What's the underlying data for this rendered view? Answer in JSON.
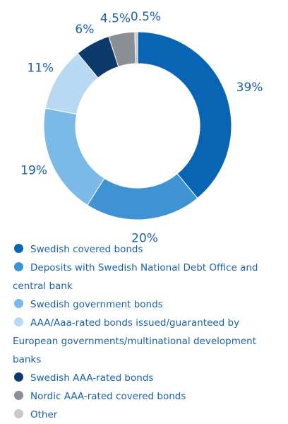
{
  "chart_data": {
    "type": "pie",
    "categories": [
      "Swedish covered bonds",
      "Deposits with Swedish National Debt Office and central bank",
      "Swedish government bonds",
      "AAA/Aaa-rated bonds issued/guaranteed by European governments/multinational development banks",
      "Swedish AAA-rated bonds",
      "Nordic AAA-rated covered bonds",
      "Other"
    ],
    "values": [
      39,
      20,
      19,
      11,
      6,
      4.5,
      0.5
    ],
    "value_labels": [
      "39%",
      "20%",
      "19%",
      "11%",
      "6%",
      "4.5%",
      "0.5%"
    ],
    "colors": [
      "#0a64b4",
      "#3f93d2",
      "#7ab9e8",
      "#b9d9f2",
      "#0b3a6b",
      "#8a8f96",
      "#c8c8c8"
    ]
  }
}
